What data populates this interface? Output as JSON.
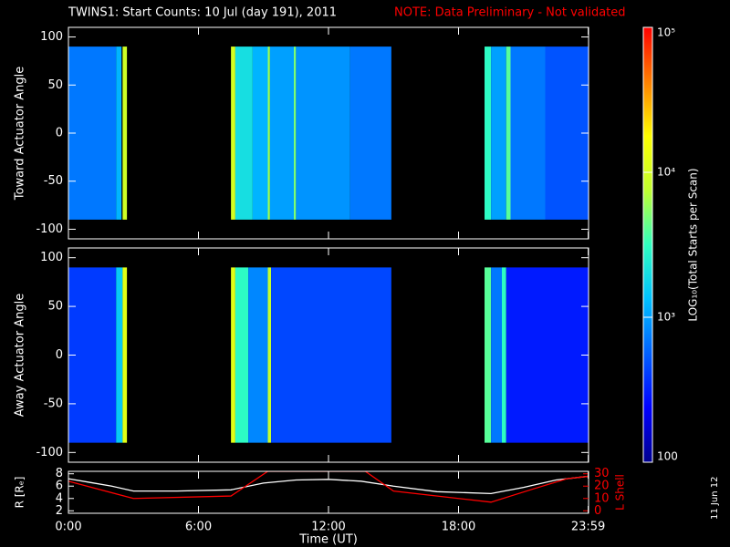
{
  "header": {
    "title": "TWINS1: Start Counts: 10 Jul (day 191), 2011",
    "note": "NOTE: Data Preliminary - Not validated",
    "date_stamp": "11 Jun 12"
  },
  "colorbar": {
    "label": "LOG₁₀(Total Starts per Scan)",
    "scale": "log",
    "lim": [
      100,
      100000
    ],
    "ticks": [
      {
        "value": 100000,
        "label": "10⁵"
      },
      {
        "value": 10000,
        "label": "10⁴"
      },
      {
        "value": 1000,
        "label": "10³"
      },
      100
    ],
    "colormap": [
      "#00008f",
      "#0000ff",
      "#0060ff",
      "#00c0ff",
      "#30ffc0",
      "#c0ff30",
      "#ffff00",
      "#ff8000",
      "#ff0000"
    ]
  },
  "chart_data": [
    {
      "type": "heatmap",
      "ylabel": "Toward Actuator Angle",
      "ylim": [
        -110,
        110
      ],
      "yticks": [
        100,
        50,
        0,
        -50,
        -100
      ],
      "angle_range": [
        -90,
        90
      ],
      "stripes": [
        {
          "x": [
            0,
            2.2
          ],
          "value": 700
        },
        {
          "x": [
            2.2,
            2.45
          ],
          "value": 1200
        },
        {
          "x": [
            2.5,
            2.7
          ],
          "value": 9000
        },
        {
          "x": [
            7.5,
            7.7
          ],
          "value": 10000
        },
        {
          "x": [
            7.7,
            8.5
          ],
          "value": 2000
        },
        {
          "x": [
            8.5,
            9.2
          ],
          "value": 1200
        },
        {
          "x": [
            9.2,
            9.3
          ],
          "value": 6000
        },
        {
          "x": [
            9.3,
            10.4
          ],
          "value": 1000
        },
        {
          "x": [
            10.4,
            10.5
          ],
          "value": 5000
        },
        {
          "x": [
            10.5,
            13.0
          ],
          "value": 900
        },
        {
          "x": [
            13.0,
            14.9
          ],
          "value": 700
        },
        {
          "x": [
            19.2,
            19.5
          ],
          "value": 3000
        },
        {
          "x": [
            19.5,
            20.2
          ],
          "value": 1000
        },
        {
          "x": [
            20.2,
            20.4
          ],
          "value": 4000
        },
        {
          "x": [
            20.4,
            22
          ],
          "value": 700
        },
        {
          "x": [
            22,
            24
          ],
          "value": 500
        }
      ]
    },
    {
      "type": "heatmap",
      "ylabel": "Away Actuator Angle",
      "ylim": [
        -110,
        110
      ],
      "yticks": [
        100,
        50,
        0,
        -50,
        -100
      ],
      "angle_range": [
        -90,
        90
      ],
      "stripes": [
        {
          "x": [
            0,
            2.2
          ],
          "value": 400
        },
        {
          "x": [
            2.2,
            2.5
          ],
          "value": 1500
        },
        {
          "x": [
            2.5,
            2.7
          ],
          "value": 12000
        },
        {
          "x": [
            7.5,
            7.7
          ],
          "value": 12000
        },
        {
          "x": [
            7.7,
            8.3
          ],
          "value": 3000
        },
        {
          "x": [
            8.3,
            9.2
          ],
          "value": 800
        },
        {
          "x": [
            9.2,
            9.35
          ],
          "value": 8000
        },
        {
          "x": [
            9.35,
            14.9
          ],
          "value": 450
        },
        {
          "x": [
            19.2,
            19.5
          ],
          "value": 4000
        },
        {
          "x": [
            19.5,
            20.0
          ],
          "value": 700
        },
        {
          "x": [
            20.0,
            20.2
          ],
          "value": 3000
        },
        {
          "x": [
            20.2,
            24
          ],
          "value": 300
        }
      ]
    },
    {
      "type": "line",
      "xlabel": "Time (UT)",
      "ylabel": "R [Rₑ]",
      "y2label": "L Shell",
      "xlim": [
        0,
        24
      ],
      "xticks": [
        {
          "value": 0,
          "label": "0:00"
        },
        {
          "value": 6,
          "label": "6:00"
        },
        {
          "value": 12,
          "label": "12:00"
        },
        {
          "value": 18,
          "label": "18:00"
        },
        {
          "value": 23.983,
          "label": "23:59"
        }
      ],
      "ylim": [
        1.6,
        8.4
      ],
      "yticks": [
        2,
        4,
        6,
        8
      ],
      "y2lim": [
        -2,
        32
      ],
      "y2ticks": [
        0,
        10,
        20,
        30
      ],
      "series": [
        {
          "color": "#ffffff",
          "x": [
            0,
            1,
            2,
            3,
            5,
            7.5,
            9,
            10.5,
            12,
            13.5,
            15,
            17,
            19.5,
            21,
            22.5,
            24
          ],
          "values": [
            7.2,
            6.6,
            6.0,
            5.2,
            5.2,
            5.4,
            6.5,
            7.0,
            7.1,
            6.8,
            6.0,
            5.1,
            4.8,
            5.8,
            7.0,
            7.6
          ]
        },
        {
          "color": "#ff0000",
          "axis": "y2",
          "x": [
            0,
            3,
            7.5,
            9.2,
            13.7,
            15,
            19.5,
            21.5,
            23,
            24
          ],
          "values": [
            24,
            10,
            12,
            32,
            32,
            16,
            7,
            18,
            26,
            28
          ]
        }
      ]
    }
  ]
}
